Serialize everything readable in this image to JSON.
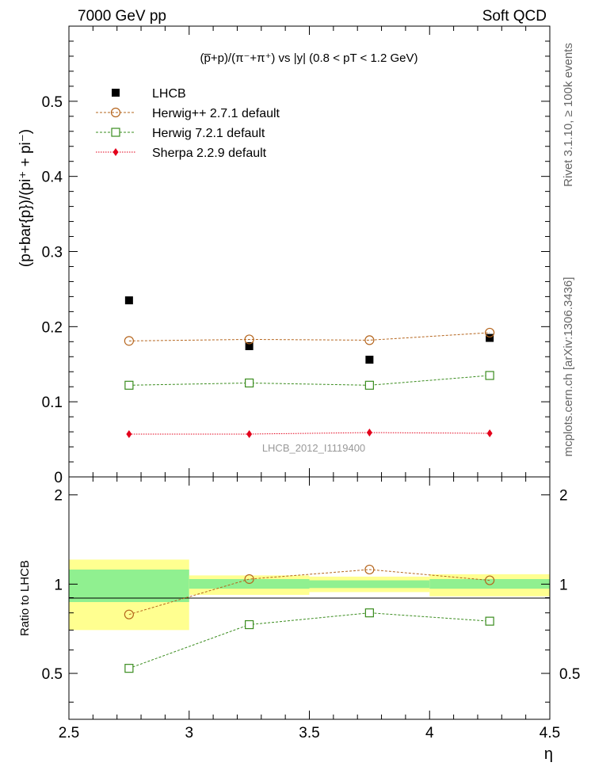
{
  "header": {
    "left": "7000 GeV pp",
    "right": "Soft QCD"
  },
  "side_text": {
    "rivet": "Rivet 3.1.10, ≥ 100k events",
    "mcplots": "mcplots.cern.ch [arXiv:1306.3436]"
  },
  "chart_data": [
    {
      "type": "scatter",
      "title": "(p̅+p)/(π⁻+π⁺) vs |y| (0.8 < pT < 1.2 GeV)",
      "ylabel": "(p+bar{p})/(pi⁺ + pi⁻)",
      "xlabel": "",
      "watermark": "LHCB_2012_I1119400",
      "xlim": [
        2.5,
        4.5
      ],
      "ylim": [
        0,
        0.6
      ],
      "yticks": [
        0,
        0.1,
        0.2,
        0.3,
        0.4,
        0.5
      ],
      "ytick_labels": [
        "0",
        "0.1",
        "0.2",
        "0.3",
        "0.4",
        "0.5"
      ],
      "legend_position": "top-left",
      "x": [
        2.75,
        3.25,
        3.75,
        4.25
      ],
      "series": [
        {
          "name": "LHCB",
          "marker": "filled-square",
          "color": "#000000",
          "values": [
            0.235,
            0.174,
            0.156,
            0.185
          ],
          "errors": [
            0.002,
            0.002,
            0.002,
            0.002
          ]
        },
        {
          "name": "Herwig++ 2.7.1 default",
          "marker": "open-circle",
          "color": "#b5651d",
          "values": [
            0.181,
            0.183,
            0.182,
            0.192
          ]
        },
        {
          "name": "Herwig 7.2.1 default",
          "marker": "open-square",
          "color": "#3a8c1e",
          "values": [
            0.122,
            0.125,
            0.122,
            0.135
          ]
        },
        {
          "name": "Sherpa 2.2.9 default",
          "marker": "filled-diamond",
          "color": "#e3001b",
          "values": [
            0.057,
            0.057,
            0.059,
            0.058
          ]
        }
      ]
    },
    {
      "type": "line",
      "ylabel": "Ratio to LHCB",
      "xlabel": "η",
      "xlim": [
        2.5,
        4.5
      ],
      "ylim": [
        0.35,
        2.3
      ],
      "xticks": [
        2.5,
        3,
        3.5,
        4,
        4.5
      ],
      "xtick_labels": [
        "2.5",
        "3",
        "3.5",
        "4",
        "4.5"
      ],
      "yticks": [
        0.5,
        1,
        2
      ],
      "ytick_labels": [
        "0.5",
        "1",
        "2"
      ],
      "bands": [
        {
          "x0": 2.5,
          "x1": 3.0,
          "stat": [
            0.87,
            1.12
          ],
          "total": [
            0.7,
            1.21
          ]
        },
        {
          "x0": 3.0,
          "x1": 3.5,
          "stat": [
            0.965,
            1.04
          ],
          "total": [
            0.92,
            1.07
          ]
        },
        {
          "x0": 3.5,
          "x1": 4.0,
          "stat": [
            0.97,
            1.03
          ],
          "total": [
            0.94,
            1.06
          ]
        },
        {
          "x0": 4.0,
          "x1": 4.5,
          "stat": [
            0.965,
            1.04
          ],
          "total": [
            0.91,
            1.08
          ]
        }
      ],
      "x": [
        2.75,
        3.25,
        3.75,
        4.25
      ],
      "series": [
        {
          "name": "Herwig++ 2.7.1 default",
          "marker": "open-circle",
          "color": "#b5651d",
          "values": [
            0.79,
            1.04,
            1.12,
            1.03
          ]
        },
        {
          "name": "Herwig 7.2.1 default",
          "marker": "open-square",
          "color": "#3a8c1e",
          "values": [
            0.52,
            0.73,
            0.8,
            0.75
          ]
        }
      ]
    }
  ],
  "colors": {
    "band_stat": "#90f090",
    "band_total": "#ffff90"
  }
}
